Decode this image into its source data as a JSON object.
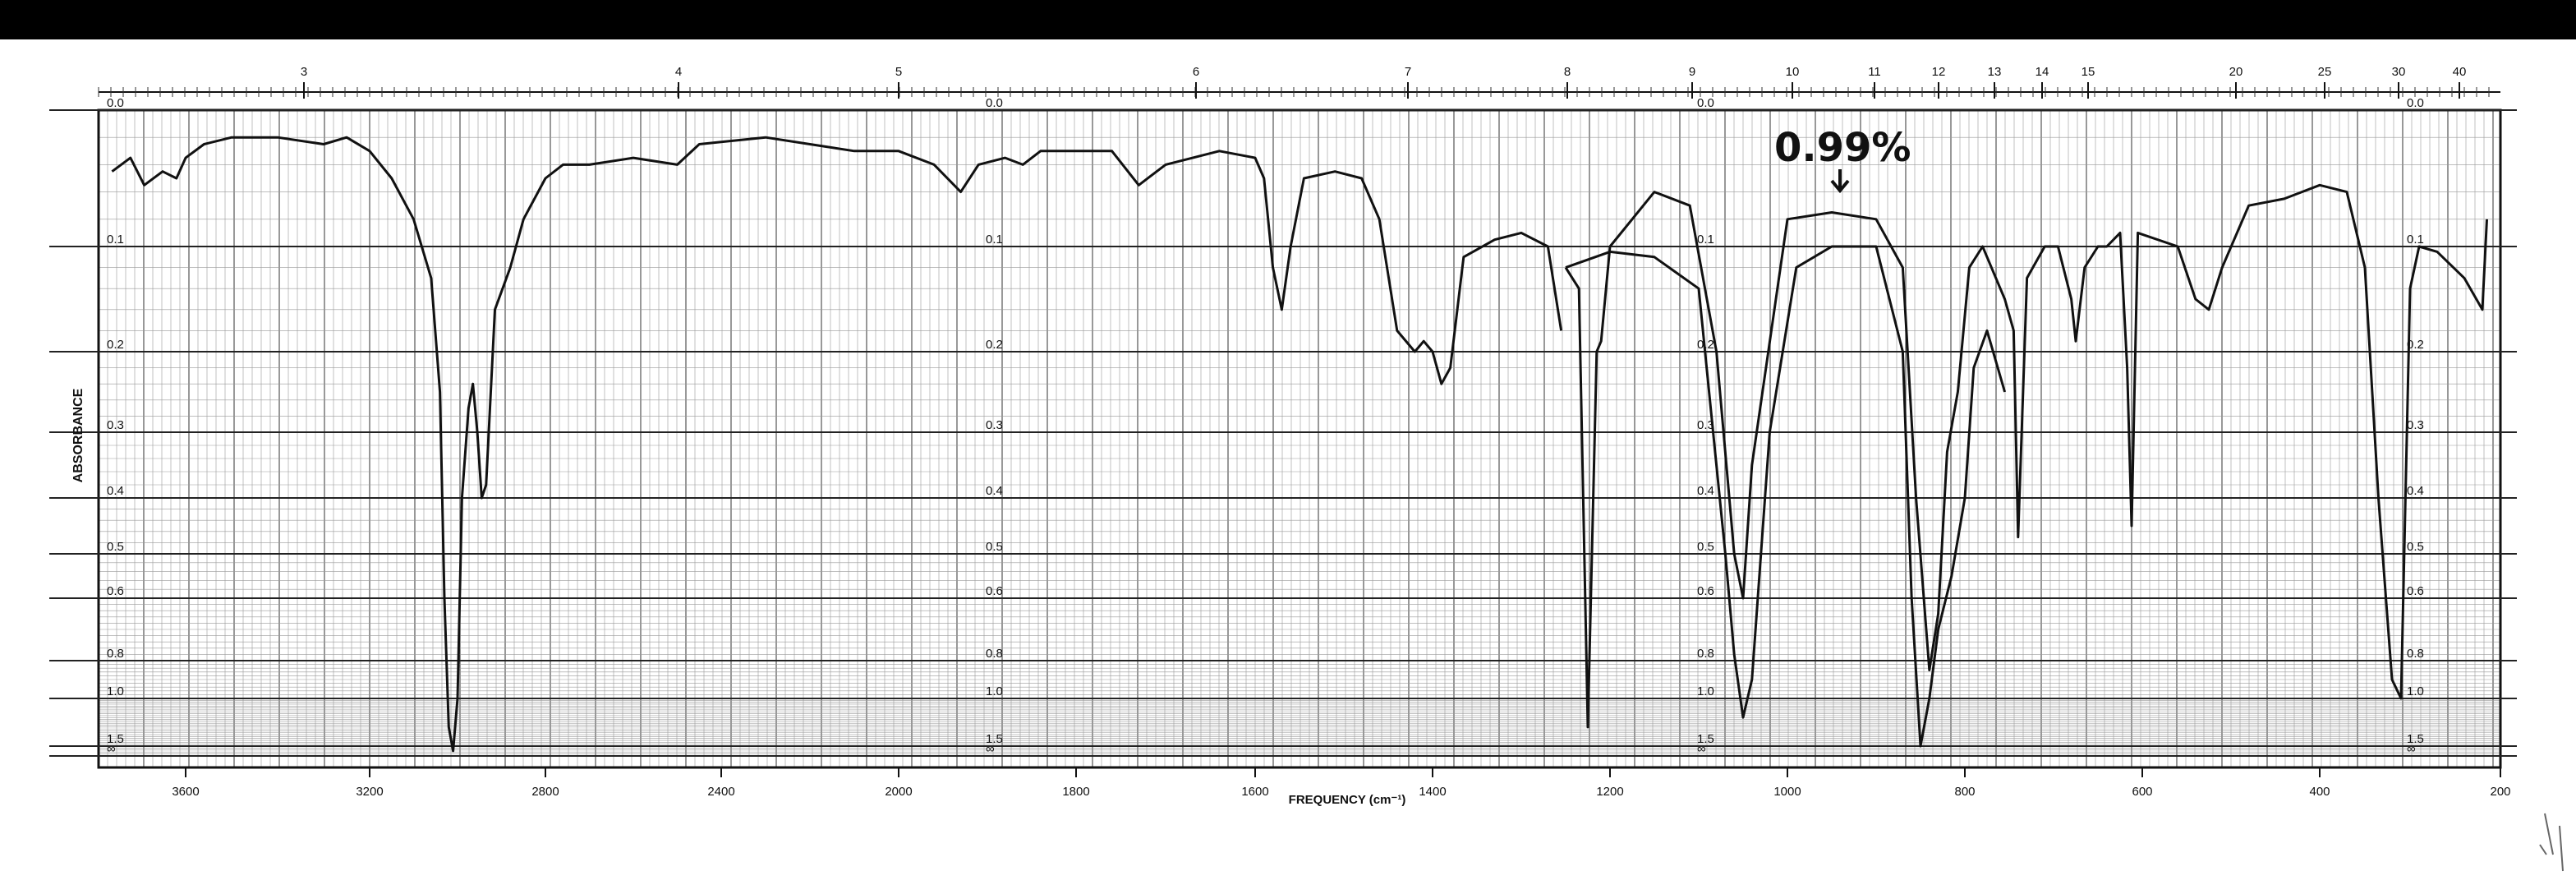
{
  "chart_data": {
    "type": "line",
    "ylabel": "ABSORBANCE",
    "xlabel": "FREQUENCY (cm⁻¹)",
    "annotation": "0.99%",
    "x_ticks": [
      "3600",
      "3200",
      "2800",
      "2400",
      "2000",
      "1800",
      "1600",
      "1400",
      "1200",
      "1000",
      "800",
      "600",
      "400",
      "200"
    ],
    "top_ticks": [
      "3",
      "4",
      "5",
      "6",
      "7",
      "8",
      "9",
      "10",
      "11",
      "12",
      "13",
      "14",
      "15",
      "20",
      "25",
      "30",
      "40"
    ],
    "y_ticks": [
      "0.0",
      "0.1",
      "0.2",
      "0.3",
      "0.4",
      "0.5",
      "0.6",
      "0.8",
      "1.0",
      "1.5",
      "∞"
    ],
    "series": [
      {
        "points": [
          [
            3760,
            0.045
          ],
          [
            3720,
            0.035
          ],
          [
            3690,
            0.055
          ],
          [
            3650,
            0.045
          ],
          [
            3620,
            0.05
          ],
          [
            3600,
            0.035
          ],
          [
            3560,
            0.025
          ],
          [
            3500,
            0.02
          ],
          [
            3400,
            0.02
          ],
          [
            3300,
            0.025
          ],
          [
            3250,
            0.02
          ],
          [
            3200,
            0.03
          ],
          [
            3150,
            0.05
          ],
          [
            3100,
            0.08
          ],
          [
            3060,
            0.13
          ],
          [
            3040,
            0.25
          ],
          [
            3030,
            0.6
          ],
          [
            3020,
            1.3
          ],
          [
            3010,
            1.55
          ],
          [
            3000,
            1.0
          ],
          [
            2990,
            0.4
          ],
          [
            2975,
            0.27
          ],
          [
            2965,
            0.24
          ],
          [
            2955,
            0.3
          ],
          [
            2945,
            0.4
          ],
          [
            2935,
            0.38
          ],
          [
            2915,
            0.16
          ],
          [
            2880,
            0.12
          ],
          [
            2850,
            0.08
          ],
          [
            2800,
            0.05
          ],
          [
            2760,
            0.04
          ],
          [
            2700,
            0.04
          ],
          [
            2600,
            0.035
          ],
          [
            2500,
            0.04
          ],
          [
            2450,
            0.025
          ],
          [
            2300,
            0.02
          ],
          [
            2200,
            0.025
          ],
          [
            2100,
            0.03
          ],
          [
            2000,
            0.03
          ],
          [
            1960,
            0.04
          ],
          [
            1930,
            0.06
          ],
          [
            1910,
            0.04
          ],
          [
            1880,
            0.035
          ],
          [
            1860,
            0.04
          ],
          [
            1840,
            0.03
          ],
          [
            1760,
            0.03
          ],
          [
            1730,
            0.055
          ],
          [
            1700,
            0.04
          ],
          [
            1640,
            0.03
          ],
          [
            1600,
            0.035
          ],
          [
            1590,
            0.05
          ],
          [
            1580,
            0.12
          ],
          [
            1570,
            0.16
          ],
          [
            1560,
            0.1
          ],
          [
            1545,
            0.05
          ],
          [
            1510,
            0.045
          ],
          [
            1480,
            0.05
          ],
          [
            1460,
            0.08
          ],
          [
            1440,
            0.18
          ],
          [
            1420,
            0.2
          ],
          [
            1410,
            0.19
          ],
          [
            1400,
            0.2
          ],
          [
            1390,
            0.24
          ],
          [
            1380,
            0.22
          ],
          [
            1365,
            0.11
          ],
          [
            1330,
            0.095
          ],
          [
            1300,
            0.09
          ],
          [
            1270,
            0.1
          ],
          [
            1255,
            0.18
          ]
        ]
      },
      {
        "points": [
          [
            1250,
            0.12
          ],
          [
            1235,
            0.14
          ],
          [
            1225,
            1.3
          ],
          [
            1215,
            0.2
          ],
          [
            1210,
            0.19
          ],
          [
            1200,
            0.1
          ],
          [
            1150,
            0.06
          ],
          [
            1110,
            0.07
          ],
          [
            1080,
            0.2
          ],
          [
            1060,
            0.5
          ],
          [
            1050,
            0.6
          ],
          [
            1040,
            0.35
          ],
          [
            1000,
            0.08
          ],
          [
            950,
            0.075
          ],
          [
            900,
            0.08
          ],
          [
            870,
            0.12
          ],
          [
            855,
            0.4
          ],
          [
            840,
            0.85
          ],
          [
            830,
            0.65
          ],
          [
            820,
            0.33
          ],
          [
            808,
            0.25
          ],
          [
            795,
            0.12
          ],
          [
            780,
            0.1
          ],
          [
            765,
            0.13
          ],
          [
            755,
            0.15
          ],
          [
            745,
            0.18
          ],
          [
            740,
            0.47
          ],
          [
            730,
            0.13
          ],
          [
            710,
            0.1
          ],
          [
            695,
            0.1
          ],
          [
            680,
            0.15
          ],
          [
            675,
            0.19
          ],
          [
            665,
            0.12
          ],
          [
            650,
            0.1
          ],
          [
            640,
            0.1
          ],
          [
            625,
            0.09
          ],
          [
            617,
            0.22
          ],
          [
            612,
            0.45
          ],
          [
            605,
            0.09
          ],
          [
            560,
            0.1
          ],
          [
            540,
            0.15
          ],
          [
            525,
            0.16
          ],
          [
            510,
            0.12
          ],
          [
            480,
            0.07
          ],
          [
            440,
            0.065
          ],
          [
            400,
            0.055
          ],
          [
            370,
            0.06
          ],
          [
            350,
            0.12
          ],
          [
            335,
            0.4
          ],
          [
            320,
            0.9
          ],
          [
            310,
            1.0
          ],
          [
            300,
            0.14
          ],
          [
            290,
            0.1
          ],
          [
            270,
            0.105
          ],
          [
            240,
            0.13
          ],
          [
            220,
            0.16
          ],
          [
            215,
            0.08
          ]
        ]
      }
    ],
    "series_10pct_dilution": [
      {
        "points": [
          [
            1250,
            0.12
          ],
          [
            1200,
            0.105
          ],
          [
            1150,
            0.11
          ],
          [
            1100,
            0.14
          ],
          [
            1070,
            0.5
          ],
          [
            1060,
            0.78
          ],
          [
            1050,
            1.2
          ],
          [
            1040,
            0.9
          ],
          [
            1020,
            0.3
          ],
          [
            990,
            0.12
          ],
          [
            950,
            0.1
          ],
          [
            900,
            0.1
          ],
          [
            870,
            0.2
          ],
          [
            860,
            0.6
          ],
          [
            850,
            1.5
          ],
          [
            840,
            1.0
          ],
          [
            830,
            0.7
          ],
          [
            815,
            0.55
          ],
          [
            800,
            0.4
          ],
          [
            790,
            0.22
          ],
          [
            775,
            0.18
          ],
          [
            755,
            0.25
          ]
        ]
      }
    ],
    "ylim": [
      0,
      1.6
    ],
    "x_scale": "split-linear (4000-2000 compressed, 2000-200 expanded)",
    "y_scale": "absorbance (log transmittance)",
    "grid": "dense"
  },
  "colors": {
    "ink": "#111111",
    "grid": "#555555",
    "paper": "#ffffff",
    "band": "#000000"
  }
}
